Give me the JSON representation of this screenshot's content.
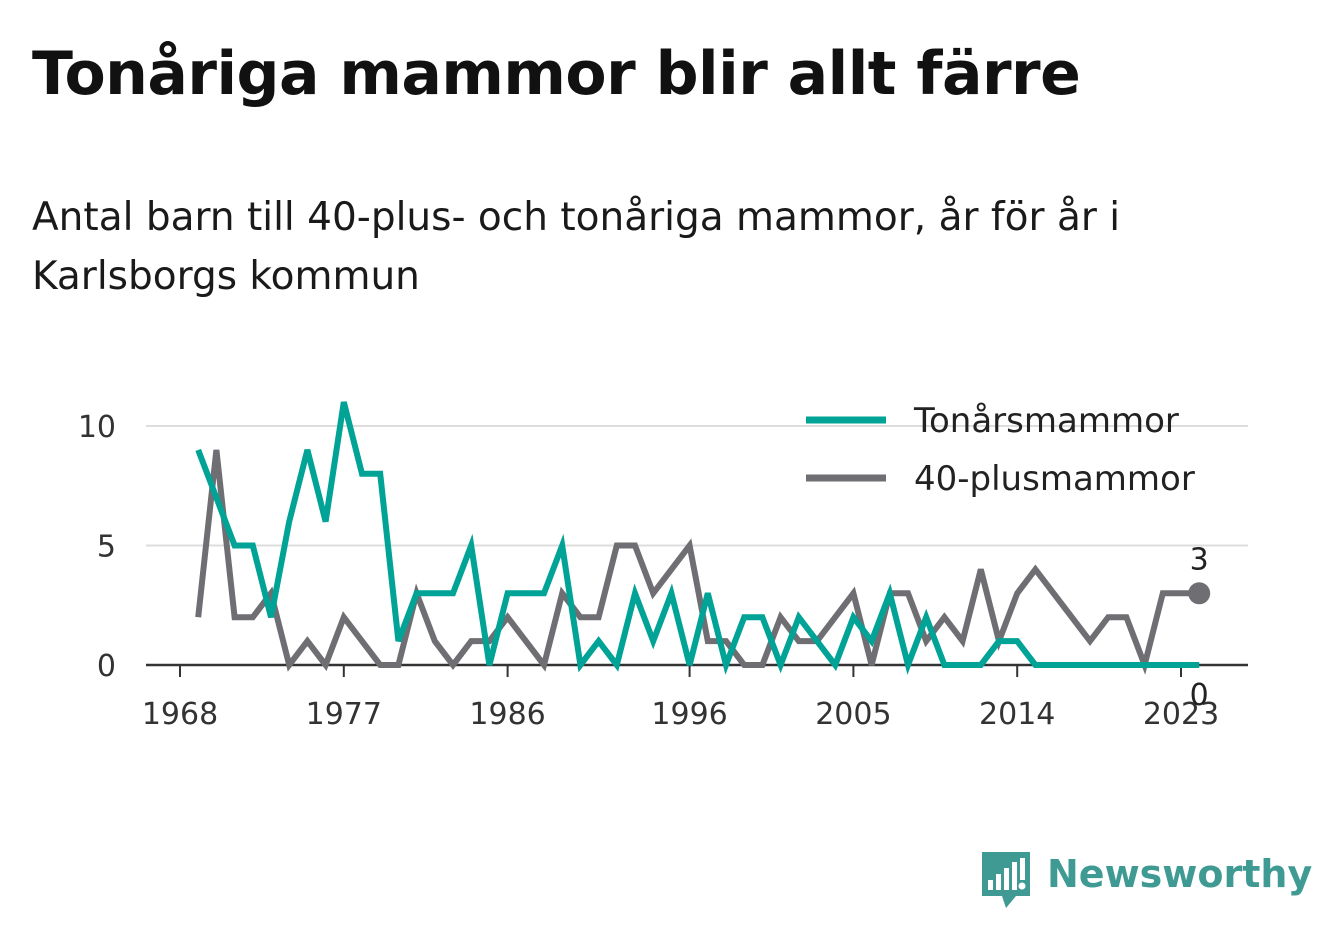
{
  "title": "Tonåriga mammor blir allt färre",
  "subtitle": "Antal barn till 40-plus- och tonåriga mammor, år för år i Karlsborgs kommun",
  "brand": {
    "name": "Newsworthy",
    "icon": "newsworthy-logo-icon",
    "color": "#3f9a94"
  },
  "chart_data": {
    "type": "line",
    "x": [
      1969,
      1970,
      1971,
      1972,
      1973,
      1974,
      1975,
      1976,
      1977,
      1978,
      1979,
      1980,
      1981,
      1982,
      1983,
      1984,
      1985,
      1986,
      1987,
      1988,
      1989,
      1990,
      1991,
      1992,
      1993,
      1994,
      1995,
      1996,
      1997,
      1998,
      1999,
      2000,
      2001,
      2002,
      2003,
      2004,
      2005,
      2006,
      2007,
      2008,
      2009,
      2010,
      2011,
      2012,
      2013,
      2014,
      2015,
      2016,
      2017,
      2018,
      2019,
      2020,
      2021,
      2022,
      2023,
      2024
    ],
    "series": [
      {
        "name": "Tonårsmammor",
        "color": "#00a396",
        "values": [
          9,
          7,
          5,
          5,
          2,
          6,
          9,
          6,
          11,
          8,
          8,
          1,
          3,
          3,
          3,
          5,
          0,
          3,
          3,
          3,
          5,
          0,
          1,
          0,
          3,
          1,
          3,
          0,
          3,
          0,
          2,
          2,
          0,
          2,
          1,
          0,
          2,
          1,
          3,
          0,
          2,
          0,
          0,
          0,
          1,
          1,
          0,
          0,
          0,
          0,
          0,
          0,
          0,
          0,
          0,
          0
        ],
        "end_label": "0"
      },
      {
        "name": "40-plusmammor",
        "color": "#6f6e73",
        "values": [
          2,
          9,
          2,
          2,
          3,
          0,
          1,
          0,
          2,
          1,
          0,
          0,
          3,
          1,
          0,
          1,
          1,
          2,
          1,
          0,
          3,
          2,
          2,
          5,
          5,
          3,
          4,
          5,
          1,
          1,
          0,
          0,
          2,
          1,
          1,
          2,
          3,
          0,
          3,
          3,
          1,
          2,
          1,
          4,
          1,
          3,
          4,
          3,
          2,
          1,
          2,
          2,
          0,
          3,
          3,
          3
        ],
        "end_label": "3"
      }
    ],
    "x_ticks": [
      "1968",
      "1977",
      "1986",
      "1996",
      "2005",
      "2014",
      "2023"
    ],
    "y_ticks": [
      "0",
      "5",
      "10"
    ],
    "ylim": [
      0,
      11
    ],
    "xlim": [
      1968,
      2025
    ],
    "grid": true,
    "legend_position": "top-right"
  }
}
